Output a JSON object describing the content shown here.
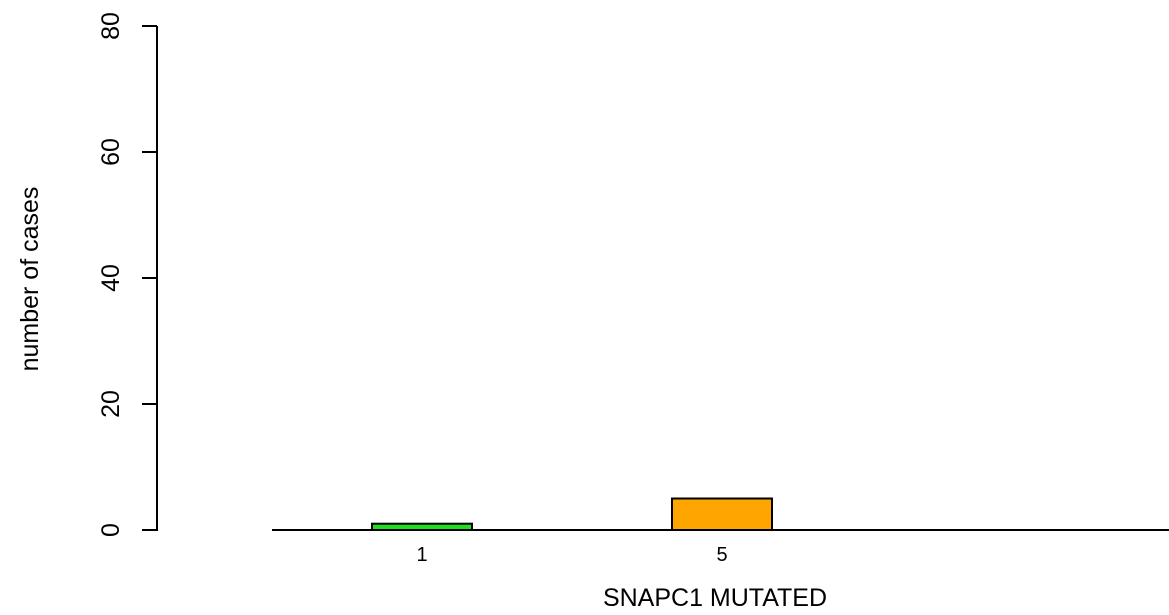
{
  "chart_data": {
    "type": "bar",
    "title": "",
    "xlabel": "SNAPC1 MUTATED",
    "ylabel": "number of cases",
    "ylim": [
      0,
      80
    ],
    "yticks": [
      0,
      20,
      40,
      60,
      80
    ],
    "categories": [
      "",
      "",
      ""
    ],
    "values": [
      1,
      5,
      0
    ],
    "bar_labels": [
      "1",
      "5",
      ""
    ],
    "colors": [
      "#22dd22",
      "#ffa500",
      "#ffffff"
    ],
    "grid": false,
    "legend": "none"
  }
}
